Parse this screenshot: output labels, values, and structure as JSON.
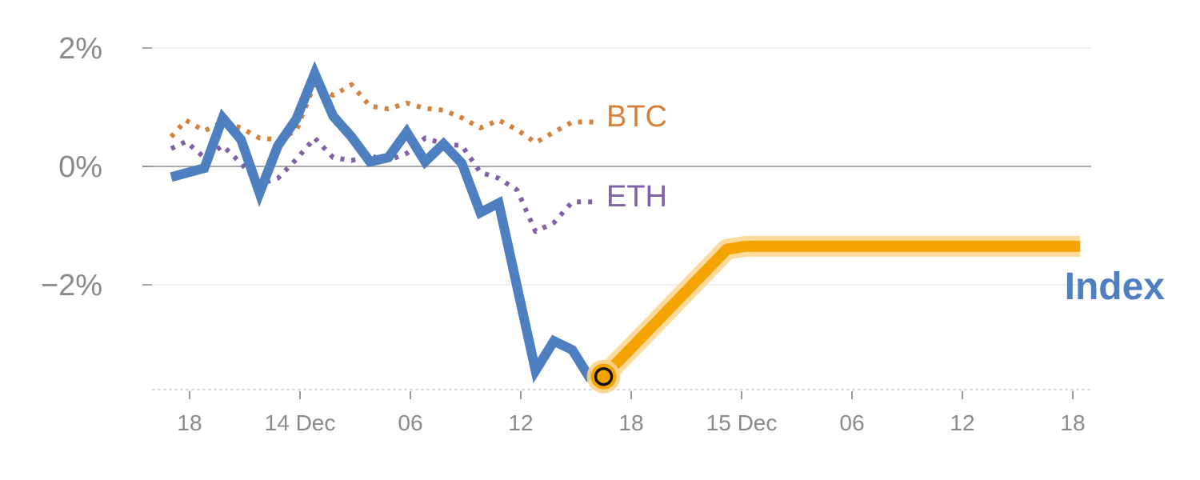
{
  "chart_data": {
    "type": "line",
    "title": "",
    "xlabel": "",
    "ylabel": "",
    "x_unit": "hours",
    "xlim": [
      -1,
      49
    ],
    "ylim": [
      -3.8,
      2.3
    ],
    "y_ticks": [
      {
        "value": 2,
        "label": "2%"
      },
      {
        "value": 0,
        "label": "0%"
      },
      {
        "value": -2,
        "label": "−2%"
      }
    ],
    "x_ticks": [
      {
        "value": 0,
        "label": "18"
      },
      {
        "value": 6,
        "label": "14 Dec"
      },
      {
        "value": 12,
        "label": "06"
      },
      {
        "value": 18,
        "label": "12"
      },
      {
        "value": 24,
        "label": "18"
      },
      {
        "value": 30,
        "label": "15 Dec"
      },
      {
        "value": 36,
        "label": "06"
      },
      {
        "value": 42,
        "label": "12"
      },
      {
        "value": 48,
        "label": "18"
      }
    ],
    "series": [
      {
        "name": "BTC",
        "color": "#d6813a",
        "style": "dotted",
        "points": [
          [
            -1,
            0.5
          ],
          [
            -0.2,
            0.78
          ],
          [
            0.8,
            0.6
          ],
          [
            1.8,
            0.75
          ],
          [
            2.8,
            0.65
          ],
          [
            3.8,
            0.48
          ],
          [
            4.8,
            0.45
          ],
          [
            5.8,
            0.6
          ],
          [
            6.8,
            1.4
          ],
          [
            7.8,
            1.2
          ],
          [
            8.8,
            1.38
          ],
          [
            9.8,
            1.02
          ],
          [
            10.8,
            0.97
          ],
          [
            11.8,
            1.07
          ],
          [
            12.8,
            0.98
          ],
          [
            13.8,
            0.95
          ],
          [
            14.8,
            0.82
          ],
          [
            15.8,
            0.65
          ],
          [
            16.8,
            0.78
          ],
          [
            17.8,
            0.62
          ],
          [
            18.8,
            0.4
          ],
          [
            19.8,
            0.58
          ],
          [
            20.8,
            0.75
          ],
          [
            22,
            0.75
          ]
        ]
      },
      {
        "name": "ETH",
        "color": "#7f5fa5",
        "style": "dotted",
        "points": [
          [
            -1,
            0.3
          ],
          [
            -0.2,
            0.42
          ],
          [
            0.8,
            0.15
          ],
          [
            1.8,
            0.35
          ],
          [
            2.8,
            0.05
          ],
          [
            3.8,
            -0.3
          ],
          [
            4.8,
            -0.2
          ],
          [
            5.8,
            0.12
          ],
          [
            6.8,
            0.48
          ],
          [
            7.8,
            0.15
          ],
          [
            8.8,
            0.1
          ],
          [
            9.8,
            0.18
          ],
          [
            10.8,
            0.1
          ],
          [
            11.8,
            0.22
          ],
          [
            12.8,
            0.48
          ],
          [
            13.8,
            0.38
          ],
          [
            14.8,
            0.35
          ],
          [
            15.8,
            -0.1
          ],
          [
            16.8,
            -0.2
          ],
          [
            17.8,
            -0.4
          ],
          [
            18.8,
            -1.1
          ],
          [
            19.8,
            -0.95
          ],
          [
            20.8,
            -0.6
          ],
          [
            22,
            -0.6
          ]
        ]
      },
      {
        "name": "Index",
        "color": "#4e7fc0",
        "style": "solid",
        "points": [
          [
            -1,
            -0.18
          ],
          [
            0.8,
            -0.03
          ],
          [
            1.8,
            0.82
          ],
          [
            2.8,
            0.45
          ],
          [
            3.8,
            -0.45
          ],
          [
            4.8,
            0.35
          ],
          [
            5.8,
            0.8
          ],
          [
            6.8,
            1.57
          ],
          [
            7.8,
            0.85
          ],
          [
            8.8,
            0.5
          ],
          [
            9.8,
            0.08
          ],
          [
            10.8,
            0.15
          ],
          [
            11.8,
            0.58
          ],
          [
            12.8,
            0.08
          ],
          [
            13.8,
            0.38
          ],
          [
            14.8,
            0.05
          ],
          [
            15.8,
            -0.78
          ],
          [
            16.8,
            -0.62
          ],
          [
            18.8,
            -3.45
          ],
          [
            19.8,
            -2.95
          ],
          [
            20.8,
            -3.1
          ],
          [
            21.8,
            -3.6
          ]
        ]
      },
      {
        "name": "Index",
        "color": "#f5a300",
        "style": "projection",
        "points": [
          [
            22.5,
            -3.55
          ],
          [
            29.2,
            -1.4
          ],
          [
            30.2,
            -1.35
          ],
          [
            48.4,
            -1.35
          ]
        ]
      }
    ],
    "marker": {
      "x": 22.5,
      "y": -3.55
    },
    "labels": {
      "btc": "BTC",
      "eth": "ETH",
      "index": "Index"
    }
  }
}
